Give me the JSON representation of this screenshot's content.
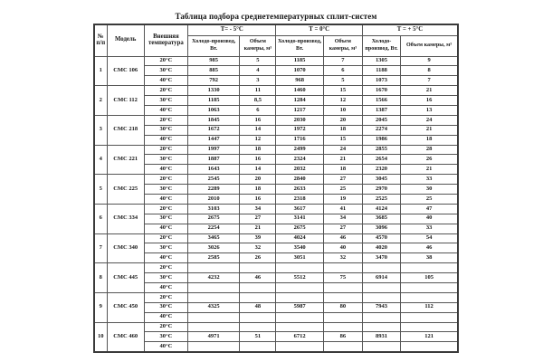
{
  "page": {
    "title": "Таблица подбора среднетемпературных сплит-систем"
  },
  "colors": {
    "background": "#ffffff",
    "text": "#151515",
    "grid_border": "#555555"
  },
  "table": {
    "corner_headers": {
      "num": "№ п/п",
      "model": "Модель",
      "ext_temp": "Внешняя температура"
    },
    "temp_groups": [
      {
        "label": "Т= - 5°С",
        "cold_header": "Холодо-производ, Вт.",
        "volume_header": "Объем камеры, м³"
      },
      {
        "label": "Т = 0°С",
        "cold_header": "Холодо-производ, Вт.",
        "volume_header": "Объем камеры, м³"
      },
      {
        "label": "Т = + 5°С",
        "cold_header": "Холодо-производ, Вт.",
        "volume_header": "Объем камеры, м³"
      }
    ],
    "models": [
      {
        "num": "1",
        "model": "СМС 106",
        "rows": [
          {
            "ext_temp": "20°С",
            "cells": [
              "985",
              "5",
              "1185",
              "7",
              "1305",
              "9"
            ]
          },
          {
            "ext_temp": "30°С",
            "cells": [
              "885",
              "4",
              "1070",
              "6",
              "1188",
              "8"
            ]
          },
          {
            "ext_temp": "40°С",
            "cells": [
              "792",
              "3",
              "968",
              "5",
              "1073",
              "7"
            ]
          }
        ]
      },
      {
        "num": "2",
        "model": "СМС 112",
        "rows": [
          {
            "ext_temp": "20°С",
            "cells": [
              "1330",
              "11",
              "1460",
              "15",
              "1670",
              "21"
            ]
          },
          {
            "ext_temp": "30°С",
            "cells": [
              "1185",
              "8,5",
              "1284",
              "12",
              "1566",
              "16"
            ]
          },
          {
            "ext_temp": "40°С",
            "cells": [
              "1063",
              "6",
              "1217",
              "10",
              "1387",
              "13"
            ]
          }
        ]
      },
      {
        "num": "3",
        "model": "СМС 218",
        "rows": [
          {
            "ext_temp": "20°С",
            "cells": [
              "1845",
              "16",
              "2030",
              "20",
              "2045",
              "24"
            ]
          },
          {
            "ext_temp": "30°С",
            "cells": [
              "1672",
              "14",
              "1972",
              "18",
              "2274",
              "21"
            ]
          },
          {
            "ext_temp": "40°С",
            "cells": [
              "1447",
              "12",
              "1716",
              "15",
              "1986",
              "18"
            ]
          }
        ]
      },
      {
        "num": "4",
        "model": "СМС 221",
        "rows": [
          {
            "ext_temp": "20°С",
            "cells": [
              "1997",
              "18",
              "2499",
              "24",
              "2855",
              "28"
            ]
          },
          {
            "ext_temp": "30°С",
            "cells": [
              "1887",
              "16",
              "2324",
              "21",
              "2654",
              "26"
            ]
          },
          {
            "ext_temp": "40°С",
            "cells": [
              "1643",
              "14",
              "2032",
              "18",
              "2320",
              "21"
            ]
          }
        ]
      },
      {
        "num": "5",
        "model": "СМС 225",
        "rows": [
          {
            "ext_temp": "20°С",
            "cells": [
              "2545",
              "20",
              "2840",
              "27",
              "3045",
              "33"
            ]
          },
          {
            "ext_temp": "30°С",
            "cells": [
              "2289",
              "18",
              "2633",
              "25",
              "2970",
              "30"
            ]
          },
          {
            "ext_temp": "40°С",
            "cells": [
              "2010",
              "16",
              "2318",
              "19",
              "2525",
              "25"
            ]
          }
        ]
      },
      {
        "num": "6",
        "model": "СМС 334",
        "rows": [
          {
            "ext_temp": "20°С",
            "cells": [
              "3103",
              "34",
              "3617",
              "41",
              "4124",
              "47"
            ]
          },
          {
            "ext_temp": "30°С",
            "cells": [
              "2675",
              "27",
              "3141",
              "34",
              "3685",
              "40"
            ]
          },
          {
            "ext_temp": "40°С",
            "cells": [
              "2254",
              "21",
              "2675",
              "27",
              "3096",
              "33"
            ]
          }
        ]
      },
      {
        "num": "7",
        "model": "СМС 340",
        "rows": [
          {
            "ext_temp": "20°С",
            "cells": [
              "3465",
              "39",
              "4024",
              "46",
              "4570",
              "54"
            ]
          },
          {
            "ext_temp": "30°С",
            "cells": [
              "3026",
              "32",
              "3540",
              "40",
              "4020",
              "46"
            ]
          },
          {
            "ext_temp": "40°С",
            "cells": [
              "2585",
              "26",
              "3051",
              "32",
              "3470",
              "38"
            ]
          }
        ]
      },
      {
        "num": "8",
        "model": "СМС 445",
        "rows": [
          {
            "ext_temp": "20°С",
            "cells": [
              "",
              "",
              "",
              "",
              "",
              ""
            ]
          },
          {
            "ext_temp": "30°С",
            "cells": [
              "4232",
              "46",
              "5512",
              "75",
              "6914",
              "105"
            ]
          },
          {
            "ext_temp": "40°С",
            "cells": [
              "",
              "",
              "",
              "",
              "",
              ""
            ]
          }
        ]
      },
      {
        "num": "9",
        "model": "СМС 450",
        "rows": [
          {
            "ext_temp": "20°С",
            "cells": [
              "",
              "",
              "",
              "",
              "",
              ""
            ]
          },
          {
            "ext_temp": "30°С",
            "cells": [
              "4325",
              "48",
              "5987",
              "80",
              "7943",
              "112"
            ]
          },
          {
            "ext_temp": "40°С",
            "cells": [
              "",
              "",
              "",
              "",
              "",
              ""
            ]
          }
        ]
      },
      {
        "num": "10",
        "model": "СМС 460",
        "rows": [
          {
            "ext_temp": "20°С",
            "cells": [
              "",
              "",
              "",
              "",
              "",
              ""
            ]
          },
          {
            "ext_temp": "30°С",
            "cells": [
              "4971",
              "51",
              "6712",
              "86",
              "8931",
              "121"
            ]
          },
          {
            "ext_temp": "40°С",
            "cells": [
              "",
              "",
              "",
              "",
              "",
              ""
            ]
          }
        ]
      }
    ]
  }
}
